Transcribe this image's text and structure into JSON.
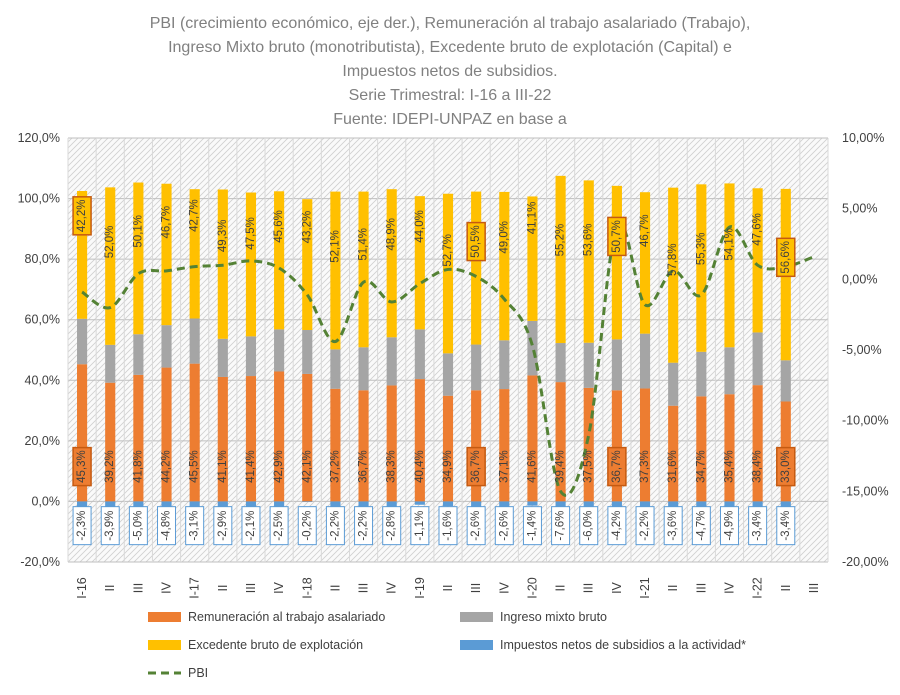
{
  "chart_data": {
    "type": "bar",
    "stacked": true,
    "title_lines": [
      "PBI (crecimiento económico, eje der.), Remuneración al trabajo asalariado (Trabajo),",
      "Ingreso Mixto bruto (monotributista), Excedente bruto de explotación (Capital) e",
      "Impuestos netos de subsidios.",
      "Serie Trimestral: I-16 a III-22",
      "Fuente: IDEPI-UNPAZ en base a"
    ],
    "categories": [
      "I-16",
      "II",
      "III",
      "IV",
      "I-17",
      "II",
      "III",
      "IV",
      "I-18",
      "II",
      "III",
      "IV",
      "I-19",
      "II",
      "III",
      "IV",
      "I-20",
      "II",
      "III",
      "IV",
      "I-21",
      "II",
      "III",
      "IV",
      "I-22",
      "II",
      "III"
    ],
    "y_left": {
      "min": -20,
      "max": 120,
      "step": 20,
      "tick_labels": [
        "-20,0%",
        "0,0%",
        "20,0%",
        "40,0%",
        "60,0%",
        "80,0%",
        "100,0%",
        "120,0%"
      ]
    },
    "y_right": {
      "min": -20,
      "max": 10,
      "step": 5,
      "tick_labels": [
        "-20,00%",
        "-15,00%",
        "-10,00%",
        "-5,00%",
        "0,00%",
        "5,00%",
        "10,00%"
      ]
    },
    "colors": {
      "trabajo": "#ED7D31",
      "mixto": "#A5A5A5",
      "capital": "#FFC000",
      "impuestos": "#5B9BD5",
      "pbi": "#548235",
      "highlight_border": "#C55A11"
    },
    "series": [
      {
        "name": "Remuneración al trabajo asalariado",
        "key": "trabajo",
        "values": [
          45.3,
          39.2,
          41.8,
          44.2,
          45.5,
          41.1,
          41.4,
          42.9,
          42.1,
          37.2,
          36.7,
          38.3,
          40.4,
          34.9,
          36.7,
          37.1,
          41.6,
          39.4,
          37.5,
          36.7,
          37.3,
          31.6,
          34.7,
          35.4,
          38.4,
          33.0,
          null
        ],
        "labels": [
          "45,3%",
          "39,2%",
          "41,8%",
          "44,2%",
          "45,5%",
          "41,1%",
          "41,4%",
          "42,9%",
          "42,1%",
          "37,2%",
          "36,7%",
          "38,3%",
          "40,4%",
          "34,9%",
          "36,7%",
          "37,1%",
          "41,6%",
          "39,4%",
          "37,5%",
          "36,7%",
          "37,3%",
          "31,6%",
          "34,7%",
          "35,4%",
          "38,4%",
          "33,0%",
          ""
        ]
      },
      {
        "name": "Ingreso mixto bruto",
        "key": "mixto",
        "values": [
          15.0,
          12.5,
          13.4,
          14.0,
          14.9,
          12.6,
          13.1,
          13.9,
          14.5,
          13.0,
          14.2,
          15.9,
          16.4,
          14.0,
          15.1,
          16.1,
          18.0,
          12.9,
          14.9,
          16.8,
          18.1,
          14.2,
          14.7,
          15.5,
          17.4,
          13.6,
          null
        ]
      },
      {
        "name": "Excedente bruto de explotación",
        "key": "capital",
        "values": [
          42.2,
          52.0,
          50.1,
          46.7,
          42.7,
          49.3,
          47.5,
          45.6,
          43.2,
          52.1,
          51.4,
          48.9,
          44.0,
          52.7,
          50.5,
          49.0,
          41.1,
          55.2,
          53.6,
          50.7,
          46.7,
          57.8,
          55.3,
          54.1,
          47.6,
          56.6,
          null
        ],
        "labels": [
          "42,2%",
          "52,0%",
          "50,1%",
          "46,7%",
          "42,7%",
          "49,3%",
          "47,5%",
          "45,6%",
          "43,2%",
          "52,1%",
          "51,4%",
          "48,9%",
          "44,0%",
          "52,7%",
          "50,5%",
          "49,0%",
          "41,1%",
          "55,2%",
          "53,6%",
          "50,7%",
          "46,7%",
          "57,8%",
          "55,3%",
          "54,1%",
          "47,6%",
          "56,6%",
          ""
        ]
      },
      {
        "name": "Impuestos netos de subsidios a la actividad*",
        "key": "impuestos",
        "values": [
          -2.3,
          -3.9,
          -5.0,
          -4.8,
          -3.1,
          -2.9,
          -2.1,
          -2.5,
          -0.2,
          -2.2,
          -2.2,
          -2.8,
          -1.1,
          -1.6,
          -2.6,
          -2.6,
          -1.4,
          -7.6,
          -6.0,
          -4.2,
          -2.2,
          -3.6,
          -4.7,
          -4.9,
          -3.4,
          -3.4,
          null
        ],
        "labels": [
          "-2,3%",
          "-3,9%",
          "-5,0%",
          "-4,8%",
          "-3,1%",
          "-2,9%",
          "-2,1%",
          "-2,5%",
          "-0,2%",
          "-2,2%",
          "-2,2%",
          "-2,8%",
          "-1,1%",
          "-1,6%",
          "-2,6%",
          "-2,6%",
          "-1,4%",
          "-7,6%",
          "-6,0%",
          "-4,2%",
          "-2,2%",
          "-3,6%",
          "-4,7%",
          "-4,9%",
          "-3,4%",
          "-3,4%",
          ""
        ]
      },
      {
        "name": "PBI",
        "key": "pbi",
        "axis": "right",
        "style": "dashed-line",
        "values": [
          -0.9,
          -2.0,
          0.4,
          0.6,
          0.9,
          1.0,
          1.3,
          0.8,
          -1.1,
          -4.4,
          -0.2,
          -1.6,
          -0.3,
          0.7,
          0.2,
          -1.4,
          -4.7,
          -15.0,
          -11.0,
          3.8,
          -1.8,
          0.6,
          -1.1,
          3.7,
          1.0,
          0.9,
          1.6
        ]
      }
    ],
    "highlighted_categories": [
      0,
      14,
      19,
      25
    ],
    "legend": [
      {
        "key": "trabajo",
        "label": "Remuneración al trabajo asalariado",
        "kind": "bar"
      },
      {
        "key": "mixto",
        "label": "Ingreso mixto bruto",
        "kind": "bar"
      },
      {
        "key": "capital",
        "label": "Excedente bruto de explotación",
        "kind": "bar"
      },
      {
        "key": "impuestos",
        "label": "Impuestos netos de subsidios a la actividad*",
        "kind": "bar"
      },
      {
        "key": "pbi",
        "label": "PBI",
        "kind": "line"
      }
    ],
    "legend_position": "bottom",
    "grid": true
  }
}
